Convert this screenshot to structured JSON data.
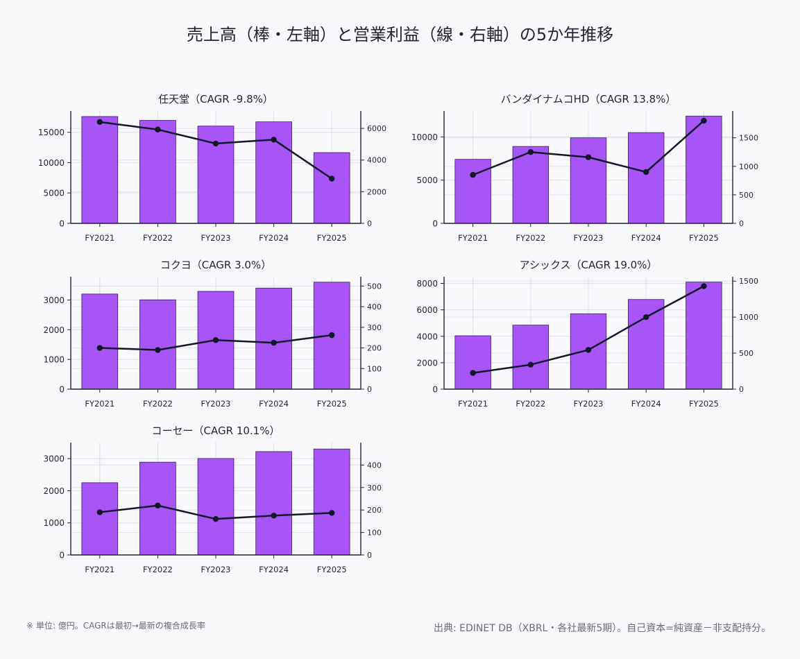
{
  "title": "売上高（棒・左軸）と営業利益（線・右軸）の5か年推移",
  "footnote_left": "※ 単位: 億円。CAGRは最初→最新の複合成長率",
  "footnote_right": "出典: EDINET DB（XBRL・各社最新5期）。自己資本=純資産－非支配持分。",
  "colors": {
    "bar": "#a855f7",
    "bar_edge": "#3b1d5e",
    "line": "#111827",
    "grid": "#e4e0f0",
    "background": "#f9f9fc"
  },
  "chart_data": [
    {
      "type": "bar",
      "title": "任天堂（CAGR -9.8%）",
      "categories": [
        "FY2021",
        "FY2022",
        "FY2023",
        "FY2024",
        "FY2025"
      ],
      "series": [
        {
          "values": [
            17589,
            16953,
            16016,
            16718,
            11649
          ],
          "axis": "left",
          "type": "bar"
        },
        {
          "values": [
            6406,
            5928,
            5043,
            5289,
            2825
          ],
          "axis": "right",
          "type": "line"
        }
      ],
      "ylim_left": [
        0,
        18500
      ],
      "ylim_right": [
        0,
        7100
      ],
      "yticks_left": [
        0,
        5000,
        10000,
        15000
      ],
      "yticks_right": [
        0,
        2000,
        4000,
        6000
      ]
    },
    {
      "type": "bar",
      "title": "バンダイナムコHD（CAGR 13.8%）",
      "categories": [
        "FY2021",
        "FY2022",
        "FY2023",
        "FY2024",
        "FY2025"
      ],
      "series": [
        {
          "values": [
            7409,
            8900,
            9900,
            10502,
            12416
          ],
          "axis": "left",
          "type": "bar"
        },
        {
          "values": [
            850,
            1250,
            1160,
            900,
            1800
          ],
          "axis": "right",
          "type": "line"
        }
      ],
      "ylim_left": [
        0,
        13000
      ],
      "ylim_right": [
        0,
        1970
      ],
      "yticks_left": [
        0,
        5000,
        10000
      ],
      "yticks_right": [
        0,
        500,
        1000,
        1500
      ]
    },
    {
      "type": "bar",
      "title": "コクヨ（CAGR 3.0%）",
      "categories": [
        "FY2021",
        "FY2022",
        "FY2023",
        "FY2024",
        "FY2025"
      ],
      "series": [
        {
          "values": [
            3200,
            3005,
            3290,
            3400,
            3600
          ],
          "axis": "left",
          "type": "bar"
        },
        {
          "values": [
            200,
            190,
            238,
            225,
            262
          ],
          "axis": "right",
          "type": "line"
        }
      ],
      "ylim_left": [
        0,
        3780
      ],
      "ylim_right": [
        0,
        545
      ],
      "yticks_left": [
        0,
        1000,
        2000,
        3000
      ],
      "yticks_right": [
        0,
        100,
        200,
        300,
        400,
        500
      ]
    },
    {
      "type": "bar",
      "title": "アシックス（CAGR 19.0%）",
      "categories": [
        "FY2021",
        "FY2022",
        "FY2023",
        "FY2024",
        "FY2025"
      ],
      "series": [
        {
          "values": [
            4040,
            4846,
            5705,
            6785,
            8100
          ],
          "axis": "left",
          "type": "bar"
        },
        {
          "values": [
            225,
            340,
            545,
            1000,
            1430
          ],
          "axis": "right",
          "type": "line"
        }
      ],
      "ylim_left": [
        0,
        8500
      ],
      "ylim_right": [
        0,
        1560
      ],
      "yticks_left": [
        0,
        2000,
        4000,
        6000,
        8000
      ],
      "yticks_right": [
        0,
        500,
        1000,
        1500
      ]
    },
    {
      "type": "bar",
      "title": "コーセー（CAGR 10.1%）",
      "categories": [
        "FY2021",
        "FY2022",
        "FY2023",
        "FY2024",
        "FY2025"
      ],
      "series": [
        {
          "values": [
            2250,
            2890,
            3005,
            3220,
            3300
          ],
          "axis": "left",
          "type": "bar"
        },
        {
          "values": [
            190,
            220,
            160,
            175,
            187
          ],
          "axis": "right",
          "type": "line"
        }
      ],
      "ylim_left": [
        0,
        3500
      ],
      "ylim_right": [
        0,
        500
      ],
      "yticks_left": [
        0,
        1000,
        2000,
        3000
      ],
      "yticks_right": [
        0,
        100,
        200,
        300,
        400
      ]
    }
  ]
}
